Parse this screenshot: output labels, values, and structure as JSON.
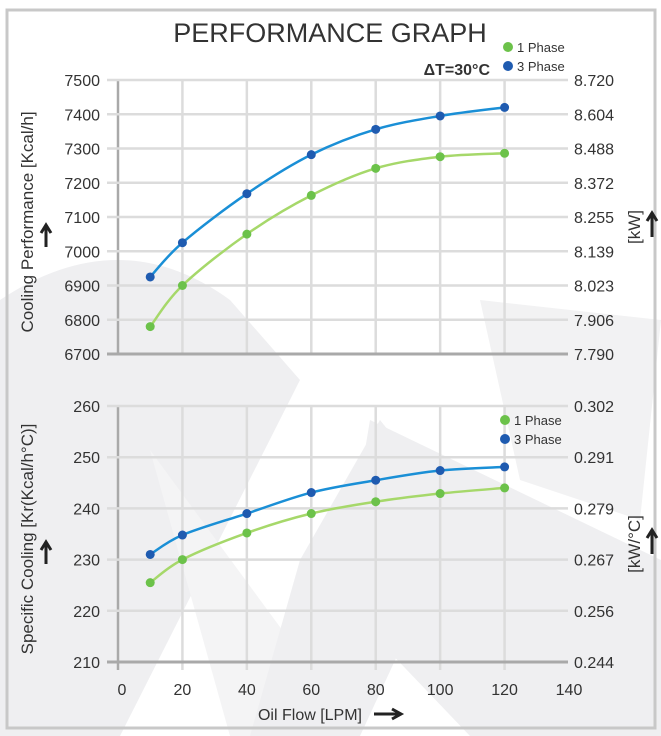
{
  "title": "PERFORMANCE GRAPH",
  "delta_t": "ΔT=30°C",
  "colors": {
    "phase1": "#6cc24a",
    "phase1_line": "#a6d86a",
    "phase3": "#1f5bb0",
    "phase3_line": "#1a8fd6",
    "grid": "#dcdcdc",
    "axis": "#a9a9a9"
  },
  "chart_data": [
    {
      "type": "line",
      "title": "Cooling Performance",
      "ylabel": "Cooling Performance [Kcal/h]",
      "y2label": "[kW]",
      "xlim": [
        0,
        140
      ],
      "ylim": [
        6700,
        7500
      ],
      "yticks": [
        6700,
        6800,
        6900,
        7000,
        7100,
        7200,
        7300,
        7400,
        7500
      ],
      "ytick_labels": [
        "6700",
        "6800",
        "6900",
        "7000",
        "7100",
        "7200",
        "7300",
        "7400",
        "7500"
      ],
      "y2tick_labels": [
        "7.790",
        "7.906",
        "8.023",
        "8.139",
        "8.255",
        "8.372",
        "8.488",
        "8.604",
        "8.720"
      ],
      "x": [
        10,
        20,
        40,
        60,
        80,
        100,
        120
      ],
      "series": [
        {
          "name": "1 Phase",
          "values": [
            6780,
            6900,
            7050,
            7163,
            7242,
            7276,
            7286
          ]
        },
        {
          "name": "3 Phase",
          "values": [
            6925,
            7025,
            7168,
            7282,
            7356,
            7395,
            7420
          ]
        }
      ],
      "legend": "top-right",
      "grid": true
    },
    {
      "type": "line",
      "title": "Specific Cooling",
      "ylabel": "Specific Cooling [Kr(Kcal/h°C)]",
      "y2label": "[kW/°C]",
      "xlabel": "Oil Flow [LPM]",
      "xlim": [
        0,
        140
      ],
      "xticks": [
        0,
        20,
        40,
        60,
        80,
        100,
        120,
        140
      ],
      "xtick_labels": [
        "0",
        "20",
        "40",
        "60",
        "80",
        "100",
        "120",
        "140"
      ],
      "ylim": [
        210,
        260
      ],
      "yticks": [
        210,
        220,
        230,
        240,
        250,
        260
      ],
      "ytick_labels": [
        "210",
        "220",
        "230",
        "240",
        "250",
        "260"
      ],
      "y2tick_labels": [
        "0.244",
        "0.256",
        "0.267",
        "0.279",
        "0.291",
        "0.302"
      ],
      "x": [
        10,
        20,
        40,
        60,
        80,
        100,
        120
      ],
      "series": [
        {
          "name": "1 Phase",
          "values": [
            225.5,
            230,
            235.2,
            239,
            241.3,
            242.9,
            244
          ]
        },
        {
          "name": "3 Phase",
          "values": [
            231,
            234.8,
            239,
            243.1,
            245.5,
            247.4,
            248.1
          ]
        }
      ],
      "legend": "top-right",
      "grid": true
    }
  ]
}
